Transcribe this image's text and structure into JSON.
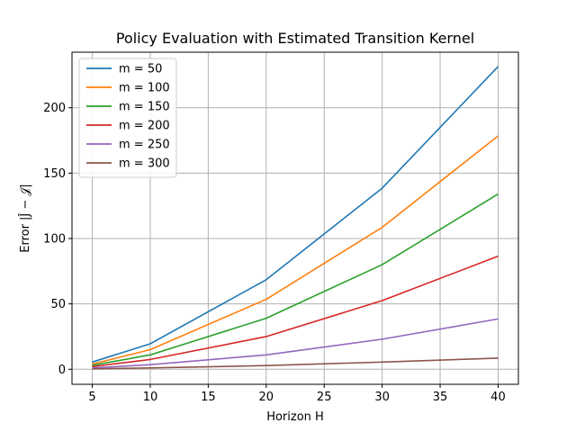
{
  "chart_data": {
    "type": "line",
    "title": "Policy Evaluation with Estimated Transition Kernel",
    "xlabel": "Horizon H",
    "ylabel": "Error |Ĵ − 𝒥|",
    "x": [
      5,
      10,
      20,
      30,
      40
    ],
    "xlim": [
      3.25,
      41.75
    ],
    "ylim": [
      -11.5,
      242.5
    ],
    "xticks": [
      5,
      10,
      15,
      20,
      25,
      30,
      35,
      40
    ],
    "yticks": [
      0,
      50,
      100,
      150,
      200
    ],
    "grid": true,
    "legend_position": "top-left",
    "series": [
      {
        "name": "m = 50",
        "color": "#1f77b4",
        "values": [
          5.5,
          19.5,
          68.5,
          138.5,
          231.5
        ]
      },
      {
        "name": "m = 100",
        "color": "#ff7f0e",
        "values": [
          4.0,
          15.0,
          53.5,
          108.5,
          178.5
        ]
      },
      {
        "name": "m = 150",
        "color": "#2ca02c",
        "values": [
          3.0,
          11.0,
          39.0,
          80.0,
          134.0
        ]
      },
      {
        "name": "m = 200",
        "color": "#d62728",
        "values": [
          2.0,
          7.5,
          25.0,
          52.5,
          86.5
        ]
      },
      {
        "name": "m = 250",
        "color": "#9467bd",
        "values": [
          1.0,
          3.5,
          11.0,
          23.0,
          38.5
        ]
      },
      {
        "name": "m = 300",
        "color": "#8c564b",
        "values": [
          0.3,
          1.0,
          2.8,
          5.5,
          8.5
        ]
      }
    ]
  }
}
